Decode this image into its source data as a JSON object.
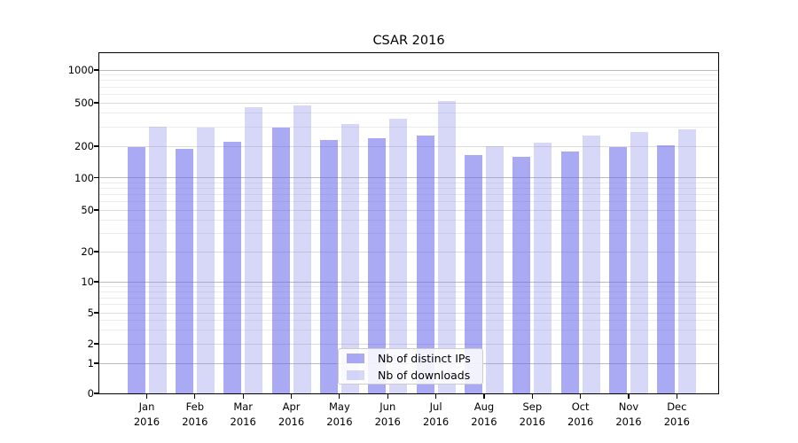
{
  "title": "CSAR 2016",
  "colors": {
    "ips_bar": "rgba(100,100,235,0.55)",
    "downloads_bar": "rgba(140,140,235,0.35)",
    "ips_bar_hex": "#aaaaf3",
    "downloads_bar_hex": "#d7d7f8",
    "grid_power10": "#bbbbbb",
    "grid_major": "#dcdcdc",
    "grid_minor": "#ececec",
    "axis": "#000000",
    "legend_border": "#cccccc",
    "text": "#000000"
  },
  "legend": {
    "items": [
      "Nb of distinct IPs",
      "Nb of downloads"
    ]
  },
  "chart_data": {
    "type": "bar",
    "title": "CSAR 2016",
    "categories": [
      "Jan 2016",
      "Feb 2016",
      "Mar 2016",
      "Apr 2016",
      "May 2016",
      "Jun 2016",
      "Jul 2016",
      "Aug 2016",
      "Sep 2016",
      "Oct 2016",
      "Nov 2016",
      "Dec 2016"
    ],
    "series": [
      {
        "name": "Nb of distinct IPs",
        "values": [
          196,
          190,
          218,
          298,
          230,
          238,
          252,
          163,
          158,
          177,
          195,
          202
        ]
      },
      {
        "name": "Nb of downloads",
        "values": [
          300,
          298,
          455,
          470,
          320,
          360,
          522,
          199,
          214,
          252,
          268,
          284
        ]
      }
    ],
    "yscale": "symlog",
    "yticks": [
      0,
      1,
      2,
      5,
      10,
      20,
      50,
      100,
      200,
      500,
      1000
    ],
    "ylim": [
      0,
      1500
    ],
    "xlabel": "",
    "ylabel": "",
    "grid": "both-horizontal",
    "legend_position": "lower center"
  }
}
